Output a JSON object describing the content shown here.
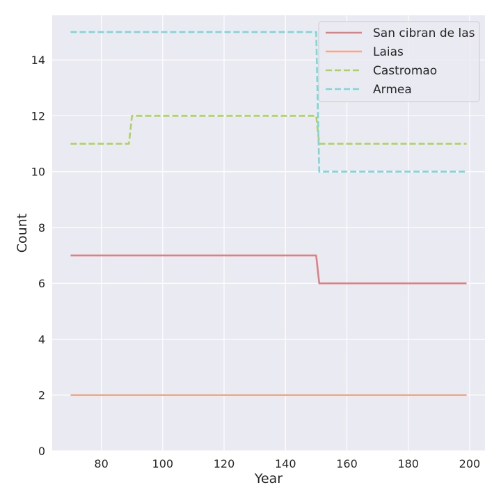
{
  "chart_data": {
    "type": "line",
    "xlabel": "Year",
    "ylabel": "Count",
    "xlim": [
      64,
      205
    ],
    "ylim": [
      0,
      15.6
    ],
    "xticks": [
      80,
      100,
      120,
      140,
      160,
      180,
      200
    ],
    "yticks": [
      0,
      2,
      4,
      6,
      8,
      10,
      12,
      14
    ],
    "grid": true,
    "legend_position": "top-right",
    "series": [
      {
        "name": "San cibran de las",
        "color": "#d98283",
        "dash": "solid",
        "points": [
          [
            70,
            7
          ],
          [
            150,
            7
          ],
          [
            151,
            6
          ],
          [
            199,
            6
          ]
        ]
      },
      {
        "name": "Laias",
        "color": "#e9aa8d",
        "dash": "solid",
        "points": [
          [
            70,
            2
          ],
          [
            199,
            2
          ]
        ]
      },
      {
        "name": "Castromao",
        "color": "#aed165",
        "dash": "dashed",
        "points": [
          [
            70,
            11
          ],
          [
            89,
            11
          ],
          [
            90,
            12
          ],
          [
            150,
            12
          ],
          [
            151,
            11
          ],
          [
            199,
            11
          ]
        ]
      },
      {
        "name": "Armea",
        "color": "#7bd8d6",
        "dash": "dashed",
        "points": [
          [
            70,
            15
          ],
          [
            150,
            15
          ],
          [
            151,
            10
          ],
          [
            199,
            10
          ]
        ]
      }
    ]
  }
}
